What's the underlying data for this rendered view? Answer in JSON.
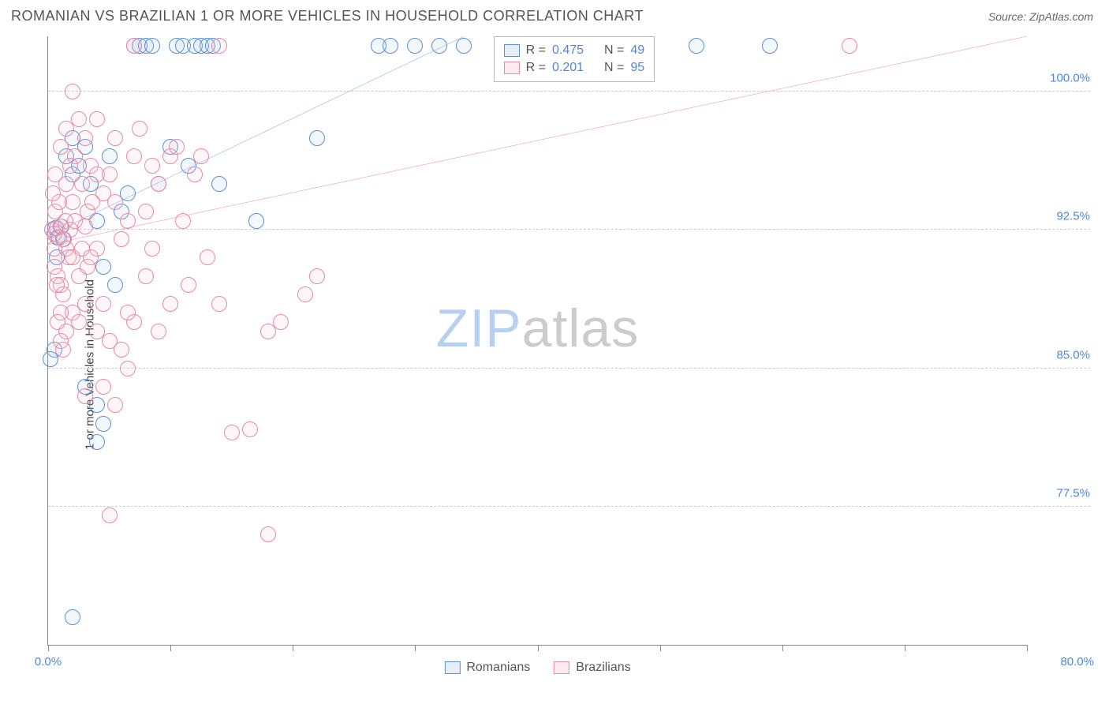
{
  "title": "ROMANIAN VS BRAZILIAN 1 OR MORE VEHICLES IN HOUSEHOLD CORRELATION CHART",
  "source": "Source: ZipAtlas.com",
  "ylabel": "1 or more Vehicles in Household",
  "watermark_a": "ZIP",
  "watermark_b": "atlas",
  "chart": {
    "type": "scatter",
    "background_color": "#ffffff",
    "grid_color": "#cccccc",
    "axis_color": "#888888",
    "tick_label_color": "#4a86e8",
    "xlim": [
      0,
      80
    ],
    "ylim": [
      70,
      103
    ],
    "xtick_positions": [
      0,
      10,
      20,
      30,
      40,
      50,
      60,
      70,
      80
    ],
    "xtick_labels": {
      "0": "0.0%",
      "80": "80.0%"
    },
    "ytick_positions": [
      77.5,
      85.0,
      92.5,
      100.0
    ],
    "ytick_labels": [
      "77.5%",
      "85.0%",
      "92.5%",
      "100.0%"
    ],
    "marker_radius": 10,
    "marker_stroke_width": 1.5,
    "marker_fill_opacity": 0.15,
    "series": [
      {
        "name": "Romanians",
        "stroke": "#5b8fd6",
        "fill": "#a9c6ec",
        "r_value": "0.475",
        "n_value": "49",
        "trend": {
          "x1": 0,
          "y1": 92.2,
          "x2": 34,
          "y2": 103,
          "color": "#3b6fc8",
          "width": 2
        },
        "points": [
          [
            0.3,
            92.5
          ],
          [
            0.5,
            92.3
          ],
          [
            0.6,
            92.6
          ],
          [
            0.8,
            92.1
          ],
          [
            1.0,
            92.7
          ],
          [
            1.2,
            92.0
          ],
          [
            0.7,
            91.0
          ],
          [
            0.5,
            86.0
          ],
          [
            1.5,
            96.5
          ],
          [
            2.0,
            95.5
          ],
          [
            2.5,
            96.0
          ],
          [
            3.0,
            97.0
          ],
          [
            3.5,
            95.0
          ],
          [
            4.0,
            93.0
          ],
          [
            4.5,
            90.5
          ],
          [
            5.0,
            96.5
          ],
          [
            5.5,
            89.5
          ],
          [
            6.0,
            93.5
          ],
          [
            6.5,
            94.5
          ],
          [
            7.0,
            102.5
          ],
          [
            7.5,
            102.5
          ],
          [
            8.0,
            102.5
          ],
          [
            8.5,
            102.5
          ],
          [
            10.0,
            97.0
          ],
          [
            10.5,
            102.5
          ],
          [
            11.0,
            102.5
          ],
          [
            11.5,
            96.0
          ],
          [
            12.0,
            102.5
          ],
          [
            12.5,
            102.5
          ],
          [
            13.0,
            102.5
          ],
          [
            13.5,
            102.5
          ],
          [
            14.0,
            95.0
          ],
          [
            17.0,
            93.0
          ],
          [
            22.0,
            97.5
          ],
          [
            27.0,
            102.5
          ],
          [
            28.0,
            102.5
          ],
          [
            30.0,
            102.5
          ],
          [
            32.0,
            102.5
          ],
          [
            34.0,
            102.5
          ],
          [
            53.0,
            102.5
          ],
          [
            59.0,
            102.5
          ],
          [
            3.0,
            84.0
          ],
          [
            4.0,
            83.0
          ],
          [
            4.5,
            82.0
          ],
          [
            4.0,
            81.0
          ],
          [
            0.2,
            85.5
          ],
          [
            2.0,
            97.5
          ],
          [
            2.0,
            71.5
          ],
          [
            9.0,
            95.0
          ]
        ]
      },
      {
        "name": "Brazilians",
        "stroke": "#e68aa5",
        "fill": "#f5c0d0",
        "r_value": "0.201",
        "n_value": "95",
        "trend": {
          "x1": 0,
          "y1": 91.7,
          "x2": 80,
          "y2": 103,
          "color": "#e05582",
          "width": 2
        },
        "points": [
          [
            0.3,
            92.5
          ],
          [
            0.5,
            92.3
          ],
          [
            0.7,
            92.6
          ],
          [
            0.9,
            92.1
          ],
          [
            1.1,
            92.7
          ],
          [
            1.3,
            92.0
          ],
          [
            1.5,
            91.5
          ],
          [
            1.7,
            91.0
          ],
          [
            0.5,
            90.5
          ],
          [
            0.8,
            90.0
          ],
          [
            1.0,
            89.5
          ],
          [
            1.2,
            89.0
          ],
          [
            0.6,
            93.5
          ],
          [
            0.9,
            94.0
          ],
          [
            1.4,
            93.0
          ],
          [
            1.8,
            92.5
          ],
          [
            2.0,
            91.0
          ],
          [
            2.5,
            90.0
          ],
          [
            3.0,
            92.7
          ],
          [
            3.5,
            96.0
          ],
          [
            4.0,
            95.5
          ],
          [
            4.5,
            94.5
          ],
          [
            5.0,
            95.5
          ],
          [
            5.5,
            94.0
          ],
          [
            6.0,
            92.0
          ],
          [
            6.5,
            93.0
          ],
          [
            7.0,
            96.5
          ],
          [
            7.5,
            98.0
          ],
          [
            8.0,
            93.5
          ],
          [
            8.5,
            91.5
          ],
          [
            9.0,
            95.0
          ],
          [
            10.0,
            96.5
          ],
          [
            12.0,
            95.5
          ],
          [
            14.0,
            102.5
          ],
          [
            7.0,
            102.5
          ],
          [
            3.0,
            97.5
          ],
          [
            2.5,
            98.5
          ],
          [
            2.0,
            100.0
          ],
          [
            1.5,
            98.0
          ],
          [
            1.0,
            97.0
          ],
          [
            4.0,
            87.0
          ],
          [
            4.5,
            88.5
          ],
          [
            5.0,
            86.5
          ],
          [
            6.0,
            86.0
          ],
          [
            6.5,
            85.0
          ],
          [
            7.0,
            87.5
          ],
          [
            8.0,
            90.0
          ],
          [
            10.0,
            88.5
          ],
          [
            11.0,
            93.0
          ],
          [
            14.0,
            88.5
          ],
          [
            18.0,
            87.0
          ],
          [
            19.0,
            87.5
          ],
          [
            21.0,
            89.0
          ],
          [
            22.0,
            90.0
          ],
          [
            3.0,
            83.5
          ],
          [
            15.0,
            81.5
          ],
          [
            16.5,
            81.7
          ],
          [
            5.0,
            77.0
          ],
          [
            18.0,
            76.0
          ],
          [
            65.5,
            102.5
          ],
          [
            2.2,
            96.5
          ],
          [
            2.8,
            95.0
          ],
          [
            3.2,
            93.5
          ],
          [
            3.6,
            94.0
          ],
          [
            2.0,
            88.0
          ],
          [
            2.5,
            87.5
          ],
          [
            3.0,
            88.5
          ],
          [
            1.5,
            87.0
          ],
          [
            1.0,
            88.0
          ],
          [
            0.8,
            87.5
          ],
          [
            4.0,
            98.5
          ],
          [
            5.5,
            97.5
          ],
          [
            10.5,
            97.0
          ],
          [
            4.5,
            84.0
          ],
          [
            5.5,
            83.0
          ],
          [
            6.5,
            88.0
          ],
          [
            9.0,
            87.0
          ],
          [
            11.5,
            89.5
          ],
          [
            13.0,
            91.0
          ],
          [
            1.5,
            95.0
          ],
          [
            2.0,
            94.0
          ],
          [
            0.6,
            95.5
          ],
          [
            0.4,
            94.5
          ],
          [
            1.8,
            96.0
          ],
          [
            2.2,
            93.0
          ],
          [
            0.5,
            91.5
          ],
          [
            0.7,
            89.5
          ],
          [
            1.0,
            86.5
          ],
          [
            1.2,
            86.0
          ],
          [
            2.8,
            91.5
          ],
          [
            3.2,
            90.5
          ],
          [
            3.5,
            91.0
          ],
          [
            4.0,
            91.5
          ],
          [
            12.5,
            96.5
          ],
          [
            8.5,
            96.0
          ]
        ]
      }
    ],
    "stats_legend": {
      "left_pct": 45.5,
      "top_pct": 0,
      "r_label": "R =",
      "n_label": "N ="
    },
    "bottom_legend": {
      "items": [
        "Romanians",
        "Brazilians"
      ]
    }
  }
}
